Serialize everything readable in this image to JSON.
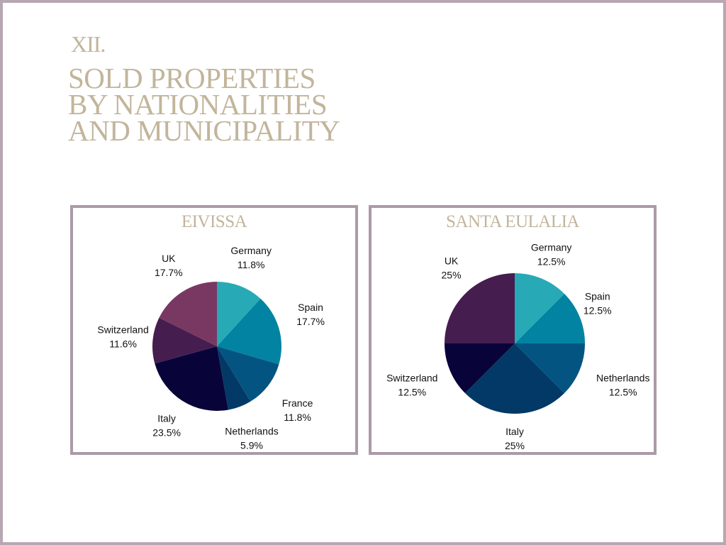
{
  "header": {
    "section_number": "XII.",
    "title_lines": [
      "SOLD PROPERTIES",
      "BY NATIONALITIES",
      "AND MUNICIPALITY"
    ]
  },
  "colors": {
    "title": "#c2b59b",
    "frame": "#ab9aa7",
    "Germany": "#27aab6",
    "Spain": "#0283a1",
    "France": "#045482",
    "Netherlands": "#033966",
    "Italy": "#08043a",
    "Switzerland": "#461d4f",
    "UK": "#793862"
  },
  "chart_data": [
    {
      "type": "pie",
      "title": "EIVISSA",
      "categories": [
        "Germany",
        "Spain",
        "France",
        "Netherlands",
        "Italy",
        "Switzerland",
        "UK"
      ],
      "values": [
        11.8,
        17.7,
        11.8,
        5.9,
        23.5,
        11.6,
        17.7
      ],
      "labels": [
        "11.8%",
        "17.7%",
        "11.8%",
        "5.9%",
        "23.5%",
        "11.6%",
        "17.7%"
      ],
      "colors": [
        "#27aab6",
        "#0283a1",
        "#045482",
        "#033966",
        "#08043a",
        "#461d4f",
        "#793862"
      ]
    },
    {
      "type": "pie",
      "title": "SANTA EULALIA",
      "categories": [
        "Germany",
        "Spain",
        "Netherlands",
        "Italy",
        "Switzerland",
        "UK"
      ],
      "values": [
        12.5,
        12.5,
        12.5,
        25,
        12.5,
        25
      ],
      "labels": [
        "12.5%",
        "12.5%",
        "12.5%",
        "25%",
        "12.5%",
        "25%"
      ],
      "colors": [
        "#27aab6",
        "#0283a1",
        "#045482",
        "#033966",
        "#08043a",
        "#461d4f"
      ]
    }
  ]
}
